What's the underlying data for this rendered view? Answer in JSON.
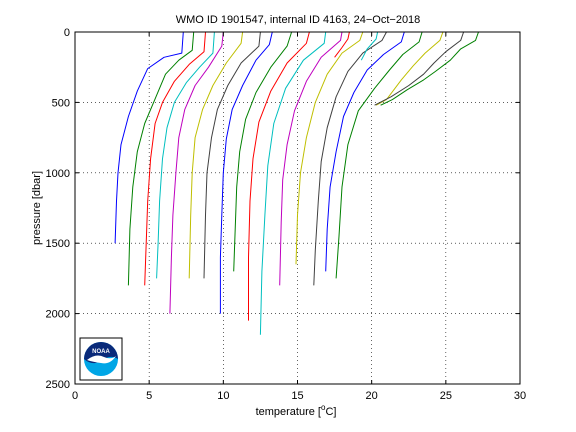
{
  "chart_data": {
    "type": "line",
    "title": "WMO ID 1901547, internal ID 4163, 24−Oct−2018",
    "xlabel": "temperature [°C]",
    "xlabel_main": "temperature [",
    "xlabel_unit": "C]",
    "ylabel": "pressure [dbar]",
    "xlim": [
      0,
      30
    ],
    "ylim": [
      0,
      2500
    ],
    "y_reversed": true,
    "grid": true,
    "x_ticks": [
      0,
      5,
      10,
      15,
      20,
      25,
      30
    ],
    "y_ticks": [
      0,
      500,
      1000,
      1500,
      2000,
      2500
    ],
    "logo_text": "NOAA",
    "series": [
      {
        "color": "#0000ff",
        "points": [
          [
            7.3,
            0
          ],
          [
            7.2,
            150
          ],
          [
            6.0,
            180
          ],
          [
            4.9,
            260
          ],
          [
            4.2,
            420
          ],
          [
            3.6,
            600
          ],
          [
            3.1,
            800
          ],
          [
            2.9,
            1000
          ],
          [
            2.8,
            1200
          ],
          [
            2.7,
            1500
          ]
        ]
      },
      {
        "color": "#008000",
        "points": [
          [
            8.0,
            0
          ],
          [
            7.9,
            130
          ],
          [
            7.0,
            200
          ],
          [
            6.1,
            300
          ],
          [
            5.3,
            500
          ],
          [
            4.7,
            650
          ],
          [
            4.2,
            850
          ],
          [
            3.9,
            1100
          ],
          [
            3.7,
            1400
          ],
          [
            3.6,
            1800
          ]
        ]
      },
      {
        "color": "#ff0000",
        "points": [
          [
            8.8,
            0
          ],
          [
            8.7,
            140
          ],
          [
            7.7,
            230
          ],
          [
            6.7,
            350
          ],
          [
            5.9,
            500
          ],
          [
            5.4,
            650
          ],
          [
            5.1,
            900
          ],
          [
            4.9,
            1200
          ],
          [
            4.8,
            1500
          ],
          [
            4.7,
            1800
          ]
        ]
      },
      {
        "color": "#00bfbf",
        "points": [
          [
            9.4,
            0
          ],
          [
            9.3,
            150
          ],
          [
            8.4,
            250
          ],
          [
            7.5,
            360
          ],
          [
            6.7,
            500
          ],
          [
            6.2,
            680
          ],
          [
            5.9,
            900
          ],
          [
            5.7,
            1200
          ],
          [
            5.6,
            1500
          ],
          [
            5.5,
            1750
          ]
        ]
      },
      {
        "color": "#bf00bf",
        "points": [
          [
            10.0,
            0
          ],
          [
            9.9,
            100
          ],
          [
            9.0,
            250
          ],
          [
            8.1,
            380
          ],
          [
            7.4,
            550
          ],
          [
            7.0,
            750
          ],
          [
            6.8,
            1000
          ],
          [
            6.6,
            1300
          ],
          [
            6.5,
            1600
          ],
          [
            6.4,
            2000
          ]
        ]
      },
      {
        "color": "#bfbf00",
        "points": [
          [
            11.3,
            0
          ],
          [
            11.2,
            80
          ],
          [
            10.2,
            220
          ],
          [
            9.3,
            380
          ],
          [
            8.6,
            550
          ],
          [
            8.1,
            750
          ],
          [
            7.9,
            1000
          ],
          [
            7.8,
            1300
          ],
          [
            7.7,
            1750
          ]
        ]
      },
      {
        "color": "#404040",
        "points": [
          [
            12.5,
            0
          ],
          [
            12.4,
            100
          ],
          [
            11.2,
            220
          ],
          [
            10.3,
            380
          ],
          [
            9.6,
            550
          ],
          [
            9.2,
            750
          ],
          [
            8.9,
            1000
          ],
          [
            8.8,
            1300
          ],
          [
            8.7,
            1750
          ]
        ]
      },
      {
        "color": "#0000ff",
        "points": [
          [
            13.3,
            0
          ],
          [
            13.1,
            90
          ],
          [
            12.2,
            200
          ],
          [
            11.3,
            380
          ],
          [
            10.6,
            550
          ],
          [
            10.2,
            760
          ],
          [
            10.0,
            1000
          ],
          [
            9.9,
            1300
          ],
          [
            9.8,
            1600
          ],
          [
            9.8,
            2000
          ]
        ]
      },
      {
        "color": "#008000",
        "points": [
          [
            14.6,
            0
          ],
          [
            14.3,
            100
          ],
          [
            13.2,
            250
          ],
          [
            12.2,
            430
          ],
          [
            11.5,
            620
          ],
          [
            11.1,
            850
          ],
          [
            10.9,
            1100
          ],
          [
            10.8,
            1400
          ],
          [
            10.7,
            1700
          ]
        ]
      },
      {
        "color": "#ff0000",
        "points": [
          [
            15.8,
            0
          ],
          [
            15.6,
            80
          ],
          [
            14.3,
            220
          ],
          [
            13.2,
            420
          ],
          [
            12.4,
            640
          ],
          [
            12.0,
            900
          ],
          [
            11.8,
            1200
          ],
          [
            11.7,
            1600
          ],
          [
            11.7,
            2050
          ]
        ]
      },
      {
        "color": "#00bfbf",
        "points": [
          [
            16.9,
            0
          ],
          [
            16.8,
            80
          ],
          [
            15.4,
            200
          ],
          [
            14.2,
            400
          ],
          [
            13.4,
            650
          ],
          [
            13.0,
            950
          ],
          [
            12.8,
            1300
          ],
          [
            12.6,
            1700
          ],
          [
            12.5,
            2150
          ]
        ]
      },
      {
        "color": "#bf00bf",
        "points": [
          [
            18.0,
            0
          ],
          [
            17.9,
            60
          ],
          [
            16.6,
            180
          ],
          [
            15.6,
            350
          ],
          [
            14.8,
            560
          ],
          [
            14.3,
            800
          ],
          [
            14.0,
            1050
          ],
          [
            13.9,
            1350
          ],
          [
            13.8,
            1800
          ]
        ]
      },
      {
        "color": "#bfbf00",
        "points": [
          [
            19.4,
            0
          ],
          [
            19.2,
            60
          ],
          [
            18.0,
            150
          ],
          [
            17.0,
            300
          ],
          [
            16.2,
            500
          ],
          [
            15.6,
            750
          ],
          [
            15.2,
            1000
          ],
          [
            15.0,
            1300
          ],
          [
            14.9,
            1650
          ]
        ]
      },
      {
        "color": "#404040",
        "points": [
          [
            21.0,
            0
          ],
          [
            20.7,
            60
          ],
          [
            19.4,
            150
          ],
          [
            18.4,
            280
          ],
          [
            17.6,
            460
          ],
          [
            17.0,
            680
          ],
          [
            16.6,
            920
          ],
          [
            16.4,
            1200
          ],
          [
            16.2,
            1550
          ],
          [
            16.1,
            1800
          ]
        ]
      },
      {
        "color": "#0000ff",
        "points": [
          [
            22.2,
            0
          ],
          [
            22.0,
            70
          ],
          [
            20.8,
            160
          ],
          [
            19.7,
            270
          ],
          [
            18.8,
            430
          ],
          [
            18.1,
            600
          ],
          [
            17.6,
            850
          ],
          [
            17.2,
            1100
          ],
          [
            17.0,
            1400
          ],
          [
            16.9,
            1700
          ]
        ]
      },
      {
        "color": "#008000",
        "points": [
          [
            23.4,
            0
          ],
          [
            23.2,
            70
          ],
          [
            22.1,
            160
          ],
          [
            21.2,
            270
          ],
          [
            20.2,
            400
          ],
          [
            19.1,
            560
          ],
          [
            18.4,
            800
          ],
          [
            18.0,
            1100
          ],
          [
            17.8,
            1450
          ],
          [
            17.6,
            1750
          ]
        ]
      },
      {
        "color": "#ff0000",
        "points": [
          [
            18.5,
            0
          ],
          [
            18.4,
            50
          ],
          [
            18.0,
            110
          ],
          [
            17.5,
            180
          ]
        ]
      },
      {
        "color": "#00bfbf",
        "points": [
          [
            20.4,
            0
          ],
          [
            20.3,
            50
          ],
          [
            19.7,
            120
          ],
          [
            19.3,
            200
          ]
        ]
      },
      {
        "color": "#bfbf00",
        "points": [
          [
            24.8,
            0
          ],
          [
            24.6,
            60
          ],
          [
            23.6,
            150
          ],
          [
            22.8,
            240
          ],
          [
            22.0,
            340
          ],
          [
            21.0,
            480
          ],
          [
            20.3,
            520
          ]
        ]
      },
      {
        "color": "#404040",
        "points": [
          [
            26.2,
            0
          ],
          [
            26.0,
            60
          ],
          [
            25.0,
            140
          ],
          [
            24.2,
            220
          ],
          [
            23.5,
            300
          ],
          [
            22.5,
            380
          ],
          [
            21.3,
            460
          ],
          [
            20.2,
            520
          ]
        ]
      },
      {
        "color": "#008000",
        "points": [
          [
            27.2,
            0
          ],
          [
            27.0,
            60
          ],
          [
            26.0,
            120
          ],
          [
            25.3,
            200
          ],
          [
            24.3,
            280
          ],
          [
            23.5,
            340
          ],
          [
            22.4,
            410
          ],
          [
            21.4,
            480
          ],
          [
            20.6,
            520
          ]
        ]
      }
    ]
  }
}
